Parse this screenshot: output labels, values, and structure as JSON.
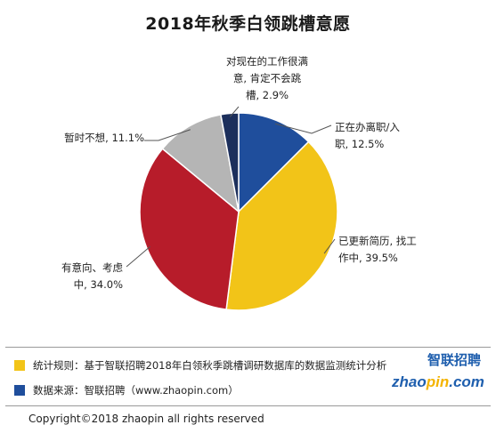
{
  "chart_data": {
    "type": "pie",
    "title": "2018年秋季白领跳槽意愿",
    "slices": [
      {
        "label": [
          "正在办离职/入",
          "职, 12.5%"
        ],
        "value": 12.5,
        "color": "#1f4e9c"
      },
      {
        "label": [
          "已更新简历, 找工",
          "作中, 39.5%"
        ],
        "value": 39.5,
        "color": "#f2c418"
      },
      {
        "label": [
          "有意向、考虑",
          "中, 34.0%"
        ],
        "value": 34.0,
        "color": "#b71c2a"
      },
      {
        "label": [
          "暂时不想, 11.1%"
        ],
        "value": 11.1,
        "color": "#b5b5b5"
      },
      {
        "label": [
          "对现在的工作很满",
          "意, 肯定不会跳",
          "槽, 2.9%"
        ],
        "value": 2.9,
        "color": "#1c2f5c"
      }
    ]
  },
  "notes": [
    {
      "text": "统计规则：基于智联招聘2018年白领秋季跳槽调研数据库的数据监测统计分析",
      "color": "#f2c418"
    },
    {
      "text": "数据来源：智联招聘（www.zhaopin.com）",
      "color": "#1f4e9c"
    }
  ],
  "logo": {
    "cn": "智联招聘",
    "en_a": "zhao",
    "en_b": "pin",
    "en_c": ".com"
  },
  "copyright": "Copyright©2018 zhaopin all rights reserved"
}
